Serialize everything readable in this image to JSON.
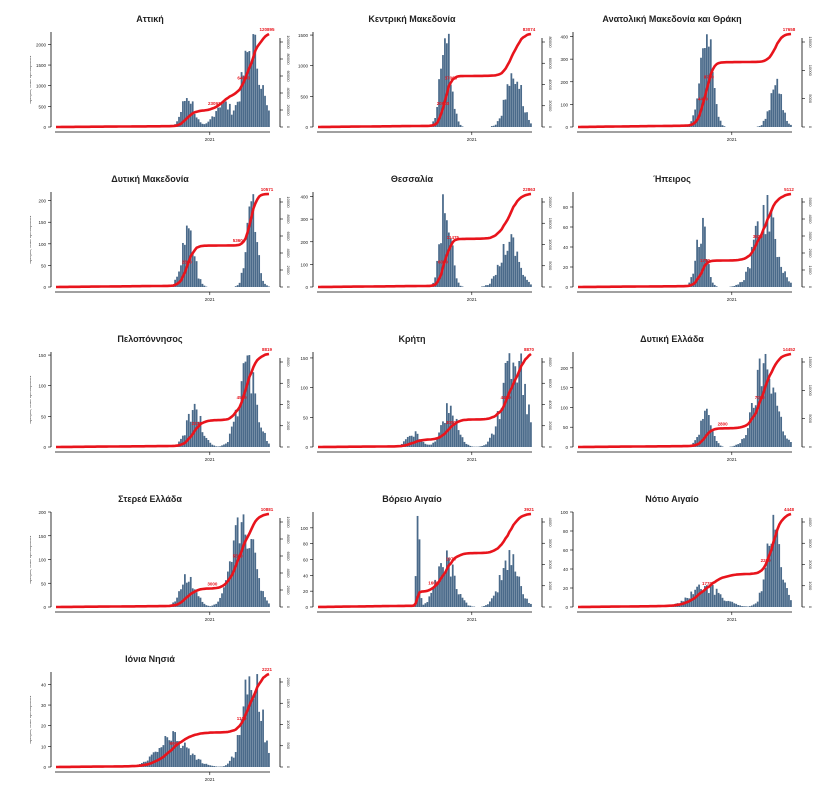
{
  "chart_data": {
    "type": "bar+line",
    "description": "Daily new cases (bars, left axis) and cumulative cases (red line, right axis) per Greek region",
    "bar_color": "#4a6a8a",
    "line_color": "#e8141c",
    "ylabel_left": "Αριθμός νέων κρουσμάτων",
    "x_tick_label": "2021",
    "panels": [
      {
        "title": "Αττική",
        "ylim_left": [
          0,
          2300
        ],
        "left_ticks": [
          0,
          500,
          1000,
          1500,
          2000
        ],
        "right_ticks": [
          "0",
          "20000",
          "40000",
          "60000",
          "80000",
          "100000"
        ],
        "annotations": [
          "23093",
          "64000",
          "120895"
        ],
        "final_cumulative": 120895,
        "peak_daily": 2250
      },
      {
        "title": "Κεντρική Μακεδονία",
        "ylim_left": [
          0,
          1550
        ],
        "left_ticks": [
          0,
          500,
          1000,
          1500
        ],
        "right_ticks": [
          "0",
          "20000",
          "40000",
          "60000",
          "80000"
        ],
        "annotations": [
          "20000",
          "37000",
          "83074"
        ],
        "final_cumulative": 83074,
        "peak_daily": 1520
      },
      {
        "title": "Ανατολική Μακεδονία και Θράκη",
        "ylim_left": [
          0,
          420
        ],
        "left_ticks": [
          0,
          100,
          200,
          300,
          400
        ],
        "right_ticks": [
          "0",
          "5000",
          "10000",
          "15000"
        ],
        "annotations": [
          "4400",
          "8700",
          "17658"
        ],
        "final_cumulative": 17658,
        "peak_daily": 410
      },
      {
        "title": "Δυτική Μακεδονία",
        "ylim_left": [
          0,
          220
        ],
        "left_ticks": [
          0,
          50,
          100,
          150,
          200
        ],
        "right_ticks": [
          "0",
          "2000",
          "4000",
          "6000",
          "8000",
          "10000"
        ],
        "annotations": [
          "2800",
          "5360",
          "10571"
        ],
        "final_cumulative": 10571,
        "peak_daily": 215
      },
      {
        "title": "Θεσσαλία",
        "ylim_left": [
          0,
          420
        ],
        "left_ticks": [
          0,
          100,
          200,
          300,
          400
        ],
        "right_ticks": [
          "0",
          "5000",
          "10000",
          "15000",
          "20000"
        ],
        "annotations": [
          "6000",
          "11475",
          "22863"
        ],
        "final_cumulative": 22863,
        "peak_daily": 410
      },
      {
        "title": "Ήπειρος",
        "ylim_left": [
          0,
          95
        ],
        "left_ticks": [
          0,
          20,
          40,
          60,
          80
        ],
        "right_ticks": [
          "0",
          "1000",
          "2000",
          "3000",
          "4000",
          "5000"
        ],
        "annotations": [
          "1750",
          "3500",
          "5112"
        ],
        "final_cumulative": 5112,
        "peak_daily": 92
      },
      {
        "title": "Πελοπόννησος",
        "ylim_left": [
          0,
          155
        ],
        "left_ticks": [
          0,
          50,
          100,
          150
        ],
        "right_ticks": [
          "0",
          "2000",
          "4000",
          "6000",
          "8000"
        ],
        "annotations": [
          "2237",
          "4500",
          "8819"
        ],
        "final_cumulative": 8819,
        "peak_daily": 150
      },
      {
        "title": "Κρήτη",
        "ylim_left": [
          0,
          160
        ],
        "left_ticks": [
          0,
          50,
          100,
          150
        ],
        "right_ticks": [
          "0",
          "2000",
          "4000",
          "6000",
          "8000"
        ],
        "annotations": [
          "3000",
          "4400",
          "8870"
        ],
        "final_cumulative": 8870,
        "peak_daily": 158
      },
      {
        "title": "Δυτική Ελλάδα",
        "ylim_left": [
          0,
          240
        ],
        "left_ticks": [
          0,
          50,
          100,
          150,
          200
        ],
        "right_ticks": [
          "0",
          "5000",
          "10000",
          "15000"
        ],
        "annotations": [
          "2800",
          "7000",
          "14452"
        ],
        "final_cumulative": 14452,
        "peak_daily": 235
      },
      {
        "title": "Στερεά Ελλάδα",
        "ylim_left": [
          0,
          200
        ],
        "left_ticks": [
          0,
          50,
          100,
          150,
          200
        ],
        "right_ticks": [
          "0",
          "2000",
          "4000",
          "6000",
          "8000",
          "10000"
        ],
        "annotations": [
          "3000",
          "5500",
          "10881"
        ],
        "final_cumulative": 10881,
        "peak_daily": 195
      },
      {
        "title": "Βόρειο Αιγαίο",
        "ylim_left": [
          0,
          120
        ],
        "left_ticks": [
          0,
          20,
          40,
          60,
          80,
          100
        ],
        "right_ticks": [
          "0",
          "1000",
          "2000",
          "3000",
          "4000"
        ],
        "annotations": [
          "1600",
          "1973",
          "3921"
        ],
        "final_cumulative": 3921,
        "peak_daily": 115
      },
      {
        "title": "Νότιο Αιγαίο",
        "ylim_left": [
          0,
          100
        ],
        "left_ticks": [
          0,
          20,
          40,
          60,
          80,
          100
        ],
        "right_ticks": [
          "0",
          "1000",
          "2000",
          "3000",
          "4000"
        ],
        "annotations": [
          "1770",
          "2200",
          "4448"
        ],
        "final_cumulative": 4448,
        "peak_daily": 97
      },
      {
        "title": "Ιόνια Νησιά",
        "ylim_left": [
          0,
          46
        ],
        "left_ticks": [
          0,
          10,
          20,
          30,
          40
        ],
        "right_ticks": [
          "0",
          "500",
          "1000",
          "1500",
          "2000"
        ],
        "annotations": [
          "900",
          "1100",
          "2221"
        ],
        "final_cumulative": 2221,
        "peak_daily": 45
      }
    ]
  }
}
